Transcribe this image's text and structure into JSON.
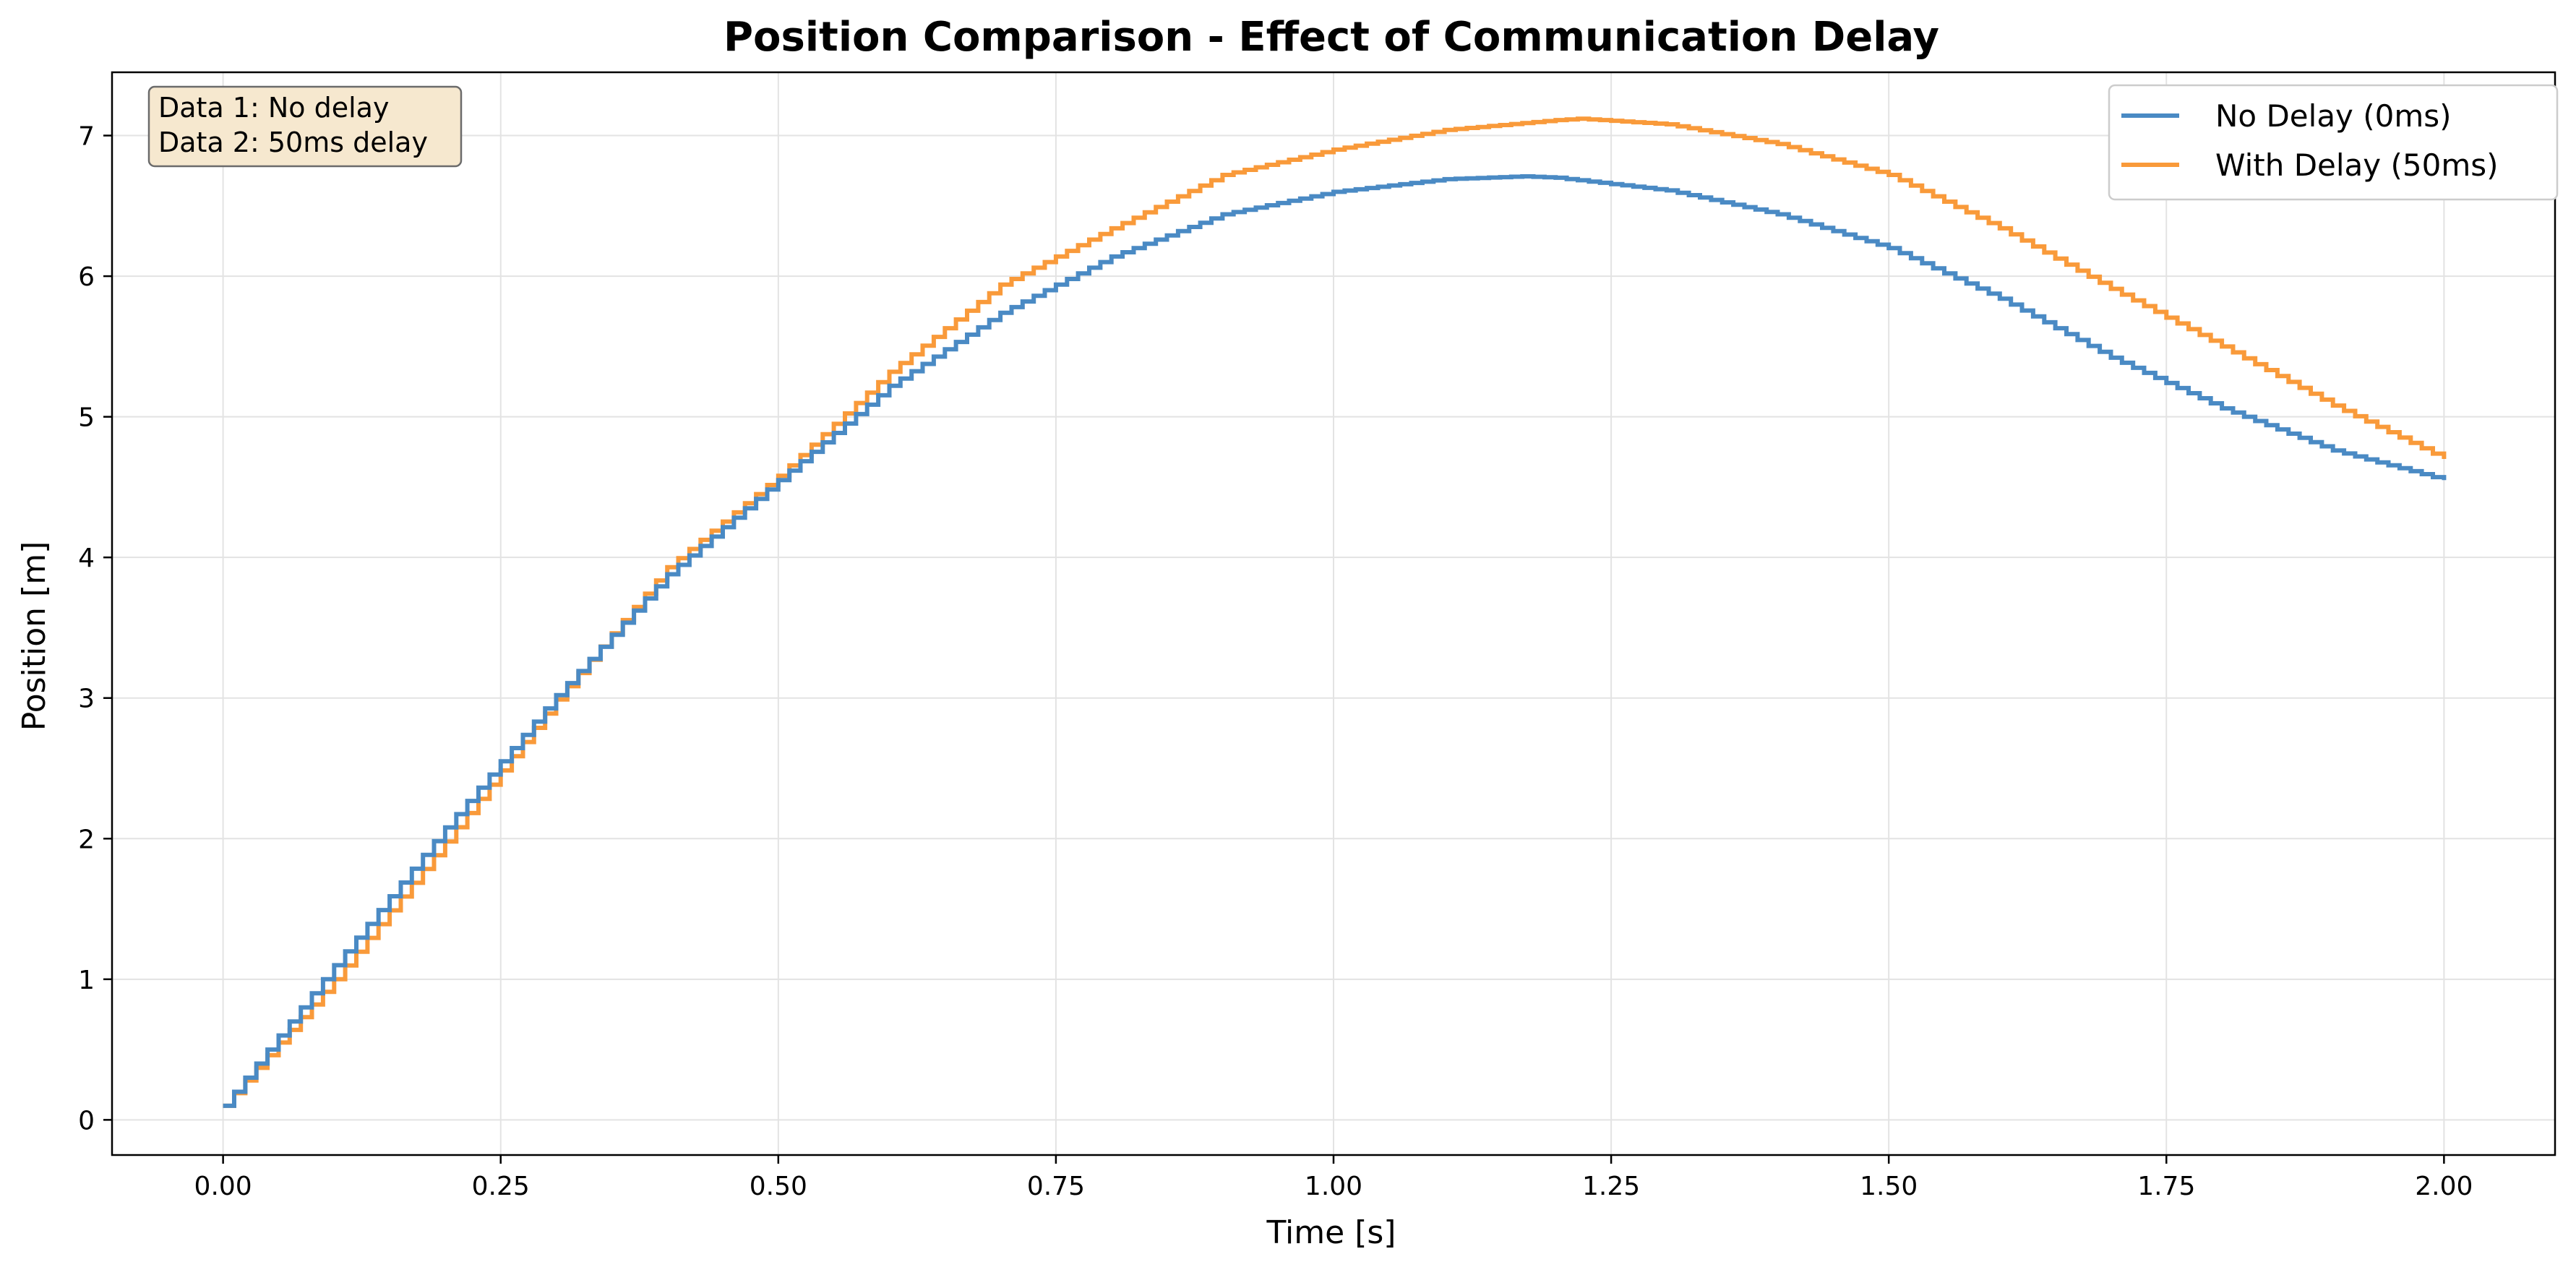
{
  "chart_data": {
    "type": "line",
    "title": "Position Comparison - Effect of Communication Delay",
    "xlabel": "Time [s]",
    "ylabel": "Position [m]",
    "xlim": [
      -0.1,
      2.1
    ],
    "ylim": [
      -0.25,
      7.45
    ],
    "x_ticks": [
      0.0,
      0.25,
      0.5,
      0.75,
      1.0,
      1.25,
      1.5,
      1.75,
      2.0
    ],
    "x_tick_labels": [
      "0.00",
      "0.25",
      "0.50",
      "0.75",
      "1.00",
      "1.25",
      "1.50",
      "1.75",
      "2.00"
    ],
    "y_ticks": [
      0,
      1,
      2,
      3,
      4,
      5,
      6,
      7
    ],
    "y_tick_labels": [
      "0",
      "1",
      "2",
      "3",
      "4",
      "5",
      "6",
      "7"
    ],
    "grid": true,
    "legend_position": "top-right",
    "step_interval_s": 0.01,
    "series": [
      {
        "name": "No Delay (0ms)",
        "color": "#4a8ac4",
        "style": "step",
        "x": [
          0.0,
          0.1,
          0.2,
          0.3,
          0.4,
          0.5,
          0.6,
          0.7,
          0.8,
          0.9,
          1.0,
          1.1,
          1.17,
          1.2,
          1.3,
          1.4,
          1.5,
          1.6,
          1.7,
          1.8,
          1.9,
          2.0
        ],
        "y": [
          0.1,
          1.1,
          2.08,
          3.02,
          3.88,
          4.55,
          5.22,
          5.74,
          6.14,
          6.44,
          6.6,
          6.69,
          6.71,
          6.7,
          6.61,
          6.44,
          6.2,
          5.84,
          5.42,
          5.06,
          4.76,
          4.55
        ]
      },
      {
        "name": "With Delay (50ms)",
        "color": "#f99a3a",
        "style": "step",
        "x": [
          0.0,
          0.1,
          0.2,
          0.3,
          0.4,
          0.5,
          0.6,
          0.7,
          0.8,
          0.9,
          1.0,
          1.1,
          1.2,
          1.22,
          1.3,
          1.4,
          1.5,
          1.6,
          1.7,
          1.8,
          1.9,
          2.0
        ],
        "y": [
          0.1,
          1.0,
          1.98,
          2.99,
          3.93,
          4.58,
          5.32,
          5.94,
          6.34,
          6.72,
          6.9,
          7.04,
          7.11,
          7.12,
          7.08,
          6.94,
          6.72,
          6.34,
          5.91,
          5.5,
          5.08,
          4.7
        ]
      }
    ],
    "annotation": [
      "Data 1: No delay",
      "Data 2: 50ms delay"
    ]
  }
}
